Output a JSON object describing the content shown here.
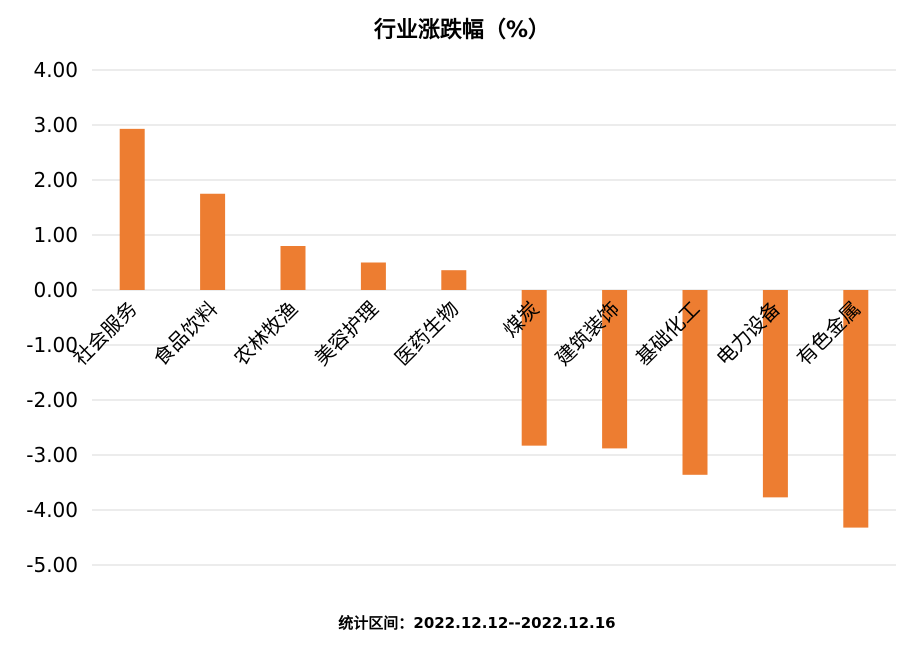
{
  "chart_data": {
    "type": "bar",
    "title": "行业涨跌幅（%）",
    "footnote": "统计区间：2022.12.12--2022.12.16",
    "categories": [
      "社会服务",
      "食品饮料",
      "农林牧渔",
      "美容护理",
      "医药生物",
      "煤炭",
      "建筑装饰",
      "基础化工",
      "电力设备",
      "有色金属"
    ],
    "values": [
      2.93,
      1.75,
      0.8,
      0.5,
      0.36,
      -2.83,
      -2.88,
      -3.36,
      -3.77,
      -4.32
    ],
    "ylim": [
      -5.0,
      4.0
    ],
    "yticks": [
      "4.00",
      "3.00",
      "2.00",
      "1.00",
      "0.00",
      "-1.00",
      "-2.00",
      "-3.00",
      "-4.00",
      "-5.00"
    ],
    "grid": true,
    "bar_color": "#ED7D31",
    "grid_color": "#D9D9D9"
  }
}
